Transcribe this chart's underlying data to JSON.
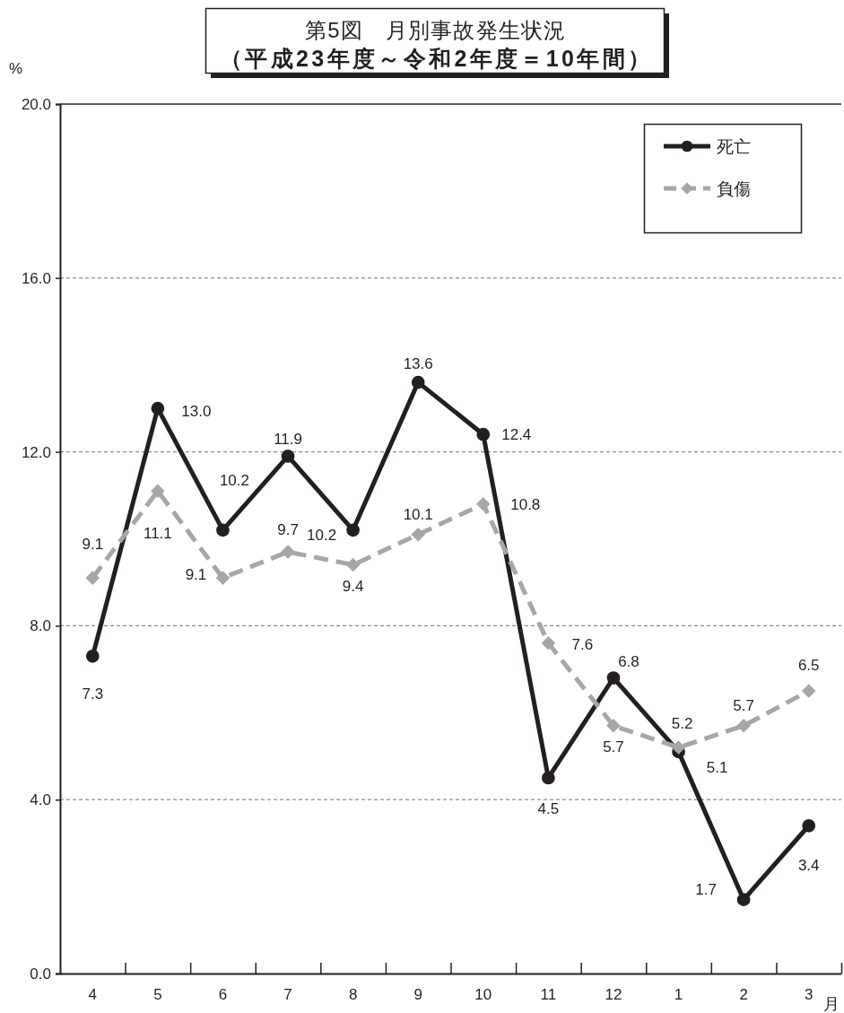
{
  "chart_data": {
    "type": "line",
    "title": "第5図　月別事故発生状況",
    "subtitle": "（平成23年度～令和2年度＝10年間）",
    "xlabel": "月",
    "ylabel": "%",
    "categories": [
      "4",
      "5",
      "6",
      "7",
      "8",
      "9",
      "10",
      "11",
      "12",
      "1",
      "2",
      "3"
    ],
    "series": [
      {
        "name": "死亡",
        "color": "#231f20",
        "marker": "circle",
        "line_style": "solid",
        "values": [
          7.3,
          13.0,
          10.2,
          11.9,
          10.2,
          13.6,
          12.4,
          4.5,
          6.8,
          5.1,
          1.7,
          3.4
        ],
        "value_labels": [
          "7.3",
          "13.0",
          "10.2",
          "11.9",
          "10.2",
          "13.6",
          "12.4",
          "4.5",
          "6.8",
          "5.1",
          "1.7",
          "3.4"
        ]
      },
      {
        "name": "負傷",
        "color": "#a6a6a6",
        "marker": "diamond",
        "line_style": "dashed",
        "values": [
          9.1,
          11.1,
          9.1,
          9.7,
          9.4,
          10.1,
          10.8,
          7.6,
          5.7,
          5.2,
          5.7,
          6.5
        ],
        "value_labels": [
          "9.1",
          "11.1",
          "9.1",
          "9.7",
          "9.4",
          "10.1",
          "10.8",
          "7.6",
          "5.7",
          "5.2",
          "5.7",
          "6.5"
        ]
      }
    ],
    "ylim": [
      0,
      20
    ],
    "yticks": [
      {
        "value": 0,
        "label": "0.0"
      },
      {
        "value": 4,
        "label": "4.0"
      },
      {
        "value": 8,
        "label": "8.0"
      },
      {
        "value": 12,
        "label": "12.0"
      },
      {
        "value": 16,
        "label": "16.0"
      },
      {
        "value": 20,
        "label": "20.0"
      }
    ],
    "grid": "y",
    "legend": "top right"
  }
}
